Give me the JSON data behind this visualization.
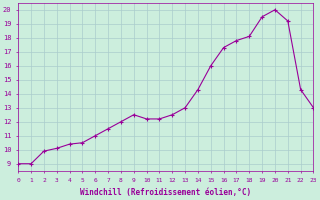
{
  "x": [
    0,
    1,
    2,
    3,
    4,
    5,
    6,
    7,
    8,
    9,
    10,
    11,
    12,
    13,
    14,
    15,
    16,
    17,
    18,
    19,
    20,
    21,
    22,
    23
  ],
  "y": [
    9.0,
    9.0,
    9.9,
    10.1,
    10.4,
    10.5,
    11.0,
    11.5,
    12.0,
    12.5,
    12.2,
    12.2,
    12.5,
    13.0,
    14.3,
    16.0,
    17.3,
    17.8,
    18.1,
    19.5,
    20.0,
    19.2,
    14.3,
    13.0
  ],
  "xlim": [
    0,
    23
  ],
  "ylim": [
    8.5,
    20.5
  ],
  "yticks": [
    9,
    10,
    11,
    12,
    13,
    14,
    15,
    16,
    17,
    18,
    19,
    20
  ],
  "xticks": [
    0,
    1,
    2,
    3,
    4,
    5,
    6,
    7,
    8,
    9,
    10,
    11,
    12,
    13,
    14,
    15,
    16,
    17,
    18,
    19,
    20,
    21,
    22,
    23
  ],
  "xlabel": "Windchill (Refroidissement éolien,°C)",
  "line_color": "#990099",
  "marker": "+",
  "background_color": "#cceedd",
  "grid_color": "#aacccc",
  "title": ""
}
